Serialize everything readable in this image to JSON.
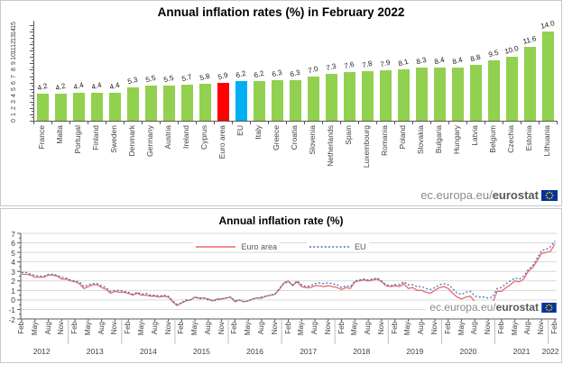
{
  "branding": {
    "url_prefix": "ec.europa.eu/",
    "brand": "eurostat"
  },
  "chart_data": [
    {
      "type": "bar",
      "title": "Annual inflation rates (%) in February 2022",
      "categories": [
        "France",
        "Malta",
        "Portugal",
        "Finland",
        "Sweden",
        "Denmark",
        "Germany",
        "Austria",
        "Ireland",
        "Cyprus",
        "Euro area",
        "EU",
        "Italy",
        "Greece",
        "Croatia",
        "Slovenia",
        "Netherlands",
        "Spain",
        "Luxembourg",
        "Romania",
        "Poland",
        "Slovakia",
        "Bulgaria",
        "Hungary",
        "Latvia",
        "Belgium",
        "Czechia",
        "Estonia",
        "Lithuania"
      ],
      "values": [
        4.2,
        4.2,
        4.4,
        4.4,
        4.4,
        5.3,
        5.5,
        5.5,
        5.7,
        5.8,
        5.9,
        6.2,
        6.2,
        6.3,
        6.3,
        7.0,
        7.3,
        7.6,
        7.8,
        7.9,
        8.1,
        8.3,
        8.4,
        8.4,
        8.8,
        9.5,
        10.0,
        11.6,
        14.0
      ],
      "value_labels": [
        "4.2",
        "4.2",
        "4.4",
        "4.4",
        "4.4",
        "5.3",
        "5.5",
        "5.5",
        "5.7",
        "5.8",
        "5.9",
        "6.2",
        "6.2",
        "6.3",
        "6.3",
        "7.0",
        "7.3",
        "7.6",
        "7.8",
        "7.9",
        "8.1",
        "8.3",
        "8.4",
        "8.4",
        "8.8",
        "9.5",
        "10.0",
        "11.6",
        "14.0"
      ],
      "bar_color": "#92D050",
      "highlight": {
        "Euro area": "#FF0000",
        "EU": "#00B0F0"
      },
      "ylim": [
        0,
        15
      ],
      "yticks": [
        0,
        1,
        2,
        3,
        4,
        5,
        6,
        7,
        8,
        9,
        10,
        11,
        12,
        13,
        14,
        15
      ],
      "grid": false,
      "watermark": "ec.europa.eu/eurostat"
    },
    {
      "type": "line",
      "title": "Annual inflation rate (%)",
      "x_start": "Feb 2012",
      "x_end": "Feb 2022",
      "month_ticks": [
        "Feb",
        "May",
        "Aug",
        "Nov"
      ],
      "years": [
        "2012",
        "2013",
        "2014",
        "2015",
        "2016",
        "2017",
        "2018",
        "2019",
        "2020",
        "2021"
      ],
      "final_tick": {
        "month": "Feb",
        "year": "2022"
      },
      "ylim": [
        -2,
        7
      ],
      "yticks": [
        7,
        6,
        5,
        4,
        3,
        2,
        1,
        0,
        -1,
        -2
      ],
      "grid": true,
      "legend_position": "top-center",
      "series": [
        {
          "name": "Euro area",
          "color": "#E8696B",
          "style": "solid",
          "values": [
            2.7,
            2.7,
            2.6,
            2.4,
            2.4,
            2.4,
            2.6,
            2.6,
            2.5,
            2.2,
            2.2,
            2.0,
            1.9,
            1.7,
            1.2,
            1.4,
            1.6,
            1.6,
            1.3,
            1.1,
            0.7,
            0.9,
            0.8,
            0.8,
            0.7,
            0.5,
            0.7,
            0.5,
            0.5,
            0.4,
            0.4,
            0.3,
            0.4,
            0.3,
            -0.2,
            -0.6,
            -0.3,
            -0.1,
            0.0,
            0.3,
            0.2,
            0.2,
            0.1,
            -0.1,
            0.1,
            0.1,
            0.2,
            0.3,
            -0.2,
            0.0,
            -0.2,
            -0.1,
            0.1,
            0.2,
            0.2,
            0.4,
            0.5,
            0.6,
            1.1,
            1.8,
            2.0,
            1.5,
            1.9,
            1.4,
            1.3,
            1.3,
            1.5,
            1.5,
            1.4,
            1.5,
            1.4,
            1.3,
            1.1,
            1.3,
            1.2,
            1.9,
            2.0,
            2.1,
            2.0,
            2.1,
            2.2,
            1.9,
            1.5,
            1.4,
            1.5,
            1.4,
            1.7,
            1.2,
            1.3,
            1.0,
            1.0,
            0.8,
            0.7,
            1.0,
            1.3,
            1.4,
            1.2,
            0.7,
            0.3,
            0.1,
            0.3,
            0.4,
            -0.2,
            -0.3,
            -0.3,
            -0.3,
            -0.3,
            0.9,
            0.9,
            1.3,
            1.6,
            2.0,
            1.9,
            2.2,
            3.0,
            3.4,
            4.1,
            4.9,
            5.0,
            5.1,
            5.9
          ]
        },
        {
          "name": "EU",
          "color": "#4472C4",
          "style": "dotted",
          "values": [
            2.9,
            2.9,
            2.7,
            2.6,
            2.5,
            2.5,
            2.7,
            2.7,
            2.6,
            2.4,
            2.3,
            2.1,
            2.0,
            1.9,
            1.4,
            1.6,
            1.7,
            1.7,
            1.5,
            1.3,
            0.9,
            1.0,
            1.0,
            0.9,
            0.8,
            0.6,
            0.8,
            0.6,
            0.7,
            0.5,
            0.5,
            0.4,
            0.5,
            0.4,
            -0.1,
            -0.5,
            -0.3,
            0.0,
            0.0,
            0.3,
            0.1,
            0.2,
            0.0,
            -0.1,
            0.0,
            0.1,
            0.2,
            0.3,
            -0.1,
            0.0,
            -0.2,
            -0.1,
            0.1,
            0.2,
            0.3,
            0.4,
            0.5,
            0.6,
            1.2,
            1.7,
            1.9,
            1.6,
            2.0,
            1.6,
            1.4,
            1.5,
            1.7,
            1.8,
            1.7,
            1.8,
            1.7,
            1.6,
            1.3,
            1.5,
            1.4,
            2.0,
            2.1,
            2.2,
            2.1,
            2.2,
            2.3,
            2.0,
            1.6,
            1.5,
            1.6,
            1.6,
            1.9,
            1.6,
            1.6,
            1.4,
            1.4,
            1.2,
            1.1,
            1.3,
            1.6,
            1.7,
            1.6,
            1.2,
            0.7,
            0.6,
            0.8,
            0.9,
            0.4,
            0.3,
            0.3,
            0.2,
            0.3,
            1.2,
            1.3,
            1.7,
            2.0,
            2.3,
            2.2,
            2.5,
            3.2,
            3.6,
            4.4,
            5.2,
            5.3,
            5.6,
            6.2
          ]
        }
      ],
      "watermark": "ec.europa.eu/eurostat"
    }
  ]
}
